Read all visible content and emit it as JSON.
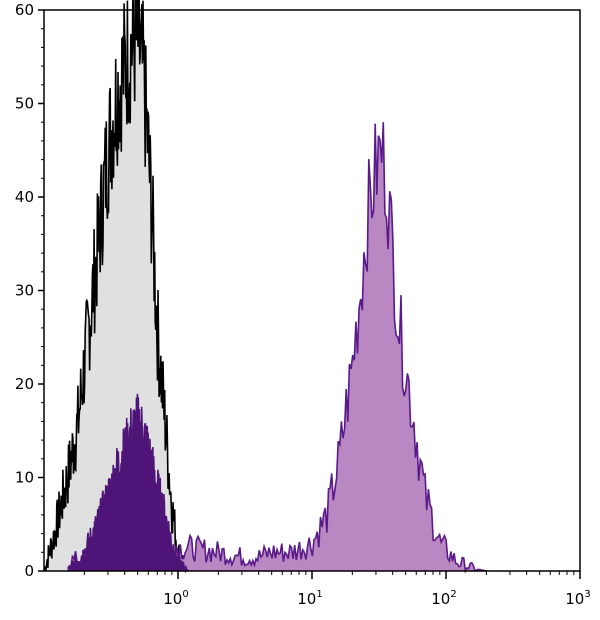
{
  "chart_data": {
    "type": "area",
    "x_scale": "log",
    "xlim": [
      0.1,
      1000
    ],
    "ylim": [
      0,
      60
    ],
    "grid": false,
    "legend": "none",
    "x_ticks": [
      {
        "value": 1,
        "base": "10",
        "exp": "0"
      },
      {
        "value": 10,
        "base": "10",
        "exp": "1"
      },
      {
        "value": 100,
        "base": "10",
        "exp": "2"
      },
      {
        "value": 1000,
        "base": "10",
        "exp": "3"
      }
    ],
    "y_ticks": [
      0,
      10,
      20,
      30,
      40,
      50,
      60
    ],
    "colors": {
      "control_fill": "#e0e0e0",
      "control_line": "#000000",
      "stained_fill": "#b987c2",
      "stained_line": "#5a1a8a",
      "low_fill": "#4f1478"
    },
    "series": [
      {
        "id": "control",
        "x": [
          0.1,
          0.12,
          0.15,
          0.18,
          0.2,
          0.25,
          0.3,
          0.35,
          0.4,
          0.45,
          0.5,
          0.55,
          0.6,
          0.65,
          0.7,
          0.8,
          0.9,
          1.0,
          1.2
        ],
        "y": [
          0,
          4,
          10,
          16,
          22,
          34,
          45,
          51,
          54,
          56,
          57,
          53,
          45,
          36,
          26,
          16,
          7,
          2,
          0
        ]
      },
      {
        "id": "stained",
        "x": [
          0.15,
          0.3,
          0.5,
          0.8,
          1.2,
          2,
          3,
          4,
          5,
          7,
          10,
          13,
          16,
          20,
          23,
          26,
          30,
          33,
          36,
          40,
          45,
          55,
          70,
          90,
          120,
          160,
          200
        ],
        "y": [
          1,
          2,
          2,
          2.5,
          2.5,
          2,
          1.5,
          1.5,
          2,
          2,
          3,
          6,
          12,
          22,
          30,
          38,
          43,
          45,
          42,
          34,
          26,
          18,
          8,
          3,
          1,
          0.3,
          0
        ]
      },
      {
        "id": "low",
        "x": [
          0.15,
          0.2,
          0.25,
          0.3,
          0.35,
          0.4,
          0.45,
          0.5,
          0.55,
          0.6,
          0.7,
          0.8,
          0.9,
          1.0,
          1.2
        ],
        "y": [
          0,
          2,
          5,
          8,
          11,
          13,
          15,
          16,
          15,
          13,
          9,
          6,
          3,
          1,
          0
        ]
      }
    ]
  }
}
